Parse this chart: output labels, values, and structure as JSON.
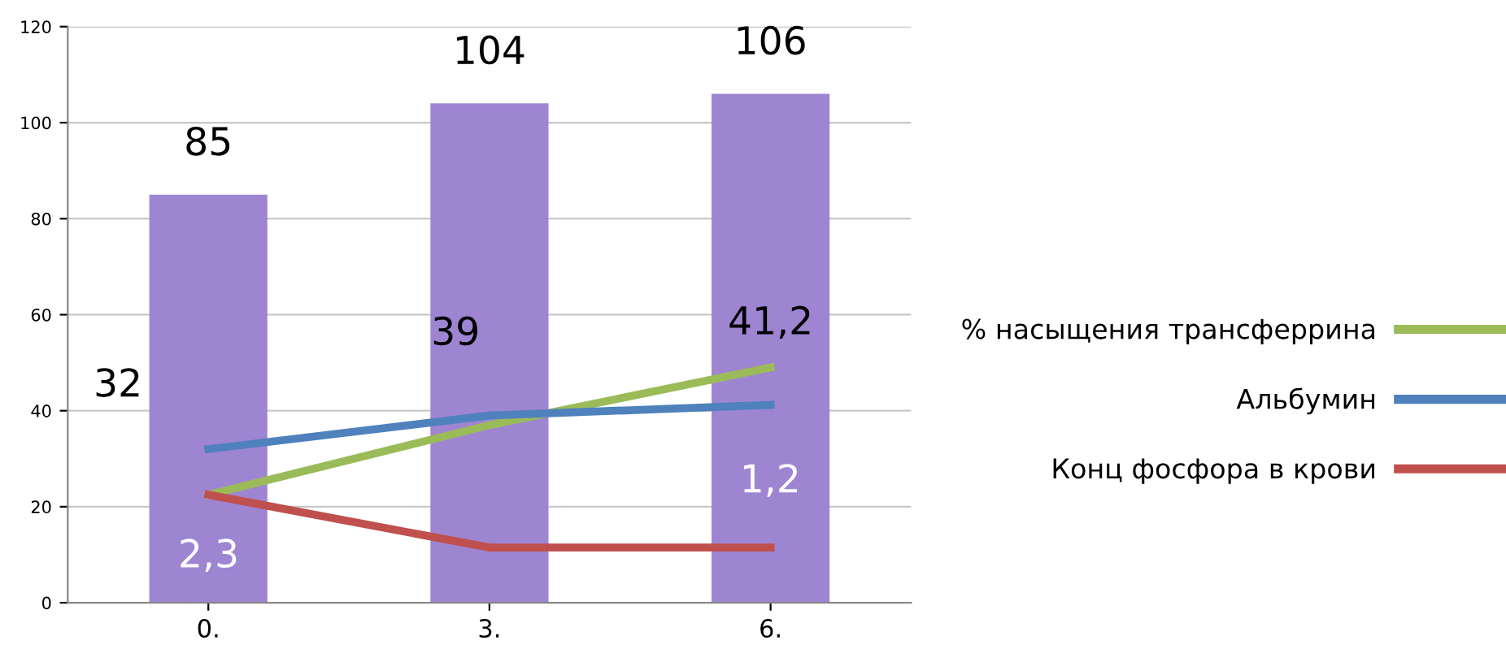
{
  "chart_data": {
    "type": "bar",
    "categories": [
      "0.",
      "3.",
      "6."
    ],
    "series": [
      {
        "color": "#9e85d2",
        "values": [
          85,
          104,
          106
        ],
        "data_labels": true
      },
      {
        "type": "line",
        "name": "% насыщения трансферрина",
        "color": "#9bbb59",
        "values": [
          22.5,
          37,
          49
        ]
      },
      {
        "type": "line",
        "name": "Альбумин",
        "color": "#4f81bd",
        "values": [
          32,
          39,
          41.2
        ],
        "value_labels": [
          "32",
          "39",
          "41,2"
        ]
      },
      {
        "type": "line",
        "name": "Конц фосфора в крови",
        "color": "#c0504d",
        "values": [
          22.5,
          11.5,
          11.5
        ]
      }
    ],
    "annotations": [
      "2,3",
      "1,2"
    ],
    "ylim": [
      0,
      120
    ],
    "yticks": [
      0,
      20,
      40,
      60,
      80,
      100,
      120
    ],
    "grid": "y",
    "legend": "right"
  }
}
